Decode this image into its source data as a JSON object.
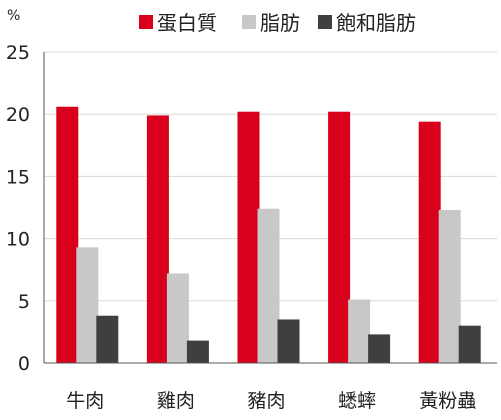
{
  "chart_data": {
    "type": "bar",
    "categories": [
      "牛肉",
      "雞肉",
      "豬肉",
      "蟋蟀",
      "黃粉蟲"
    ],
    "series": [
      {
        "name": "蛋白質",
        "color": "#d9001b",
        "values": [
          20.6,
          19.9,
          20.2,
          20.2,
          19.4
        ]
      },
      {
        "name": "脂肪",
        "color": "#c8c8c8",
        "values": [
          9.3,
          7.2,
          12.4,
          5.1,
          12.3
        ]
      },
      {
        "name": "飽和脂肪",
        "color": "#3f3f3f",
        "values": [
          3.8,
          1.8,
          3.5,
          2.3,
          3.0
        ]
      }
    ],
    "unit": "%",
    "ylim": [
      0,
      25
    ],
    "yticks": [
      0,
      5,
      10,
      15,
      20,
      25
    ],
    "grid": true,
    "legend_position": "top"
  }
}
